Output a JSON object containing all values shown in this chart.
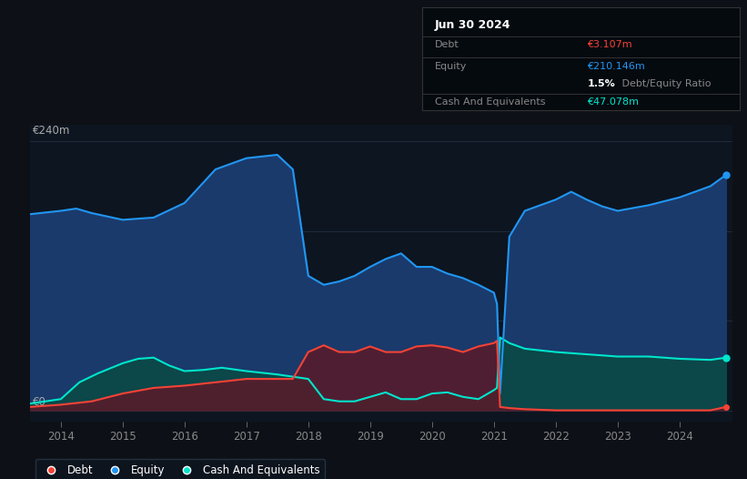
{
  "bg_color": "#0d1117",
  "plot_bg_color": "#0d1520",
  "grid_color": "#1e2d3d",
  "x_ticks": [
    2014,
    2015,
    2016,
    2017,
    2018,
    2019,
    2020,
    2021,
    2022,
    2023,
    2024
  ],
  "y_label": "€240m",
  "y_zero_label": "€0",
  "ylim": [
    -10,
    255
  ],
  "xlim": [
    2013.5,
    2024.85
  ],
  "equity_color": "#2196f3",
  "debt_color": "#f44336",
  "cash_color": "#00e5cc",
  "equity_fill": "#1a3a6b",
  "debt_fill": "#5a1a2a",
  "cash_fill": "#0a4a44",
  "tooltip_title": "Jun 30 2024",
  "tooltip_debt_label": "Debt",
  "tooltip_debt_value": "€3.107m",
  "tooltip_equity_label": "Equity",
  "tooltip_equity_value": "€210.146m",
  "tooltip_ratio_bold": "1.5%",
  "tooltip_ratio_rest": " Debt/Equity Ratio",
  "tooltip_cash_label": "Cash And Equivalents",
  "tooltip_cash_value": "€47.078m",
  "legend_debt": "Debt",
  "legend_equity": "Equity",
  "legend_cash": "Cash And Equivalents",
  "years_equity": [
    2013.5,
    2014.0,
    2014.25,
    2014.5,
    2015.0,
    2015.5,
    2016.0,
    2016.25,
    2016.5,
    2016.75,
    2017.0,
    2017.5,
    2017.75,
    2018.0,
    2018.25,
    2018.5,
    2018.75,
    2019.0,
    2019.25,
    2019.5,
    2019.75,
    2020.0,
    2020.25,
    2020.5,
    2020.75,
    2021.0,
    2021.05,
    2021.1,
    2021.25,
    2021.5,
    2022.0,
    2022.25,
    2022.5,
    2022.75,
    2023.0,
    2023.5,
    2024.0,
    2024.5,
    2024.75
  ],
  "equity_vals": [
    175,
    178,
    180,
    176,
    170,
    172,
    185,
    200,
    215,
    220,
    225,
    228,
    215,
    120,
    112,
    115,
    120,
    128,
    135,
    140,
    128,
    128,
    122,
    118,
    112,
    105,
    95,
    15,
    155,
    178,
    188,
    195,
    188,
    182,
    178,
    183,
    190,
    200,
    210
  ],
  "years_debt": [
    2013.5,
    2014.0,
    2014.5,
    2015.0,
    2015.5,
    2016.0,
    2016.5,
    2017.0,
    2017.5,
    2017.75,
    2018.0,
    2018.25,
    2018.5,
    2018.75,
    2019.0,
    2019.25,
    2019.5,
    2019.75,
    2020.0,
    2020.25,
    2020.5,
    2020.75,
    2021.0,
    2021.05,
    2021.1,
    2021.25,
    2021.5,
    2022.0,
    2022.5,
    2023.0,
    2023.5,
    2024.0,
    2024.5,
    2024.75
  ],
  "debt_vals": [
    3,
    5,
    8,
    15,
    20,
    22,
    25,
    28,
    28,
    28,
    52,
    58,
    52,
    52,
    57,
    52,
    52,
    57,
    58,
    56,
    52,
    57,
    60,
    62,
    3,
    2,
    1,
    0,
    0,
    0,
    0,
    0,
    0,
    3
  ],
  "years_cash": [
    2013.5,
    2014.0,
    2014.3,
    2014.6,
    2015.0,
    2015.25,
    2015.5,
    2015.75,
    2016.0,
    2016.3,
    2016.6,
    2017.0,
    2017.5,
    2018.0,
    2018.25,
    2018.5,
    2018.75,
    2019.0,
    2019.25,
    2019.5,
    2019.75,
    2020.0,
    2020.25,
    2020.5,
    2020.75,
    2021.0,
    2021.05,
    2021.1,
    2021.25,
    2021.5,
    2022.0,
    2022.5,
    2023.0,
    2023.5,
    2024.0,
    2024.5,
    2024.75
  ],
  "cash_vals": [
    6,
    10,
    25,
    33,
    42,
    46,
    47,
    40,
    35,
    36,
    38,
    35,
    32,
    28,
    10,
    8,
    8,
    12,
    16,
    10,
    10,
    15,
    16,
    12,
    10,
    18,
    20,
    65,
    60,
    55,
    52,
    50,
    48,
    48,
    46,
    45,
    47
  ]
}
